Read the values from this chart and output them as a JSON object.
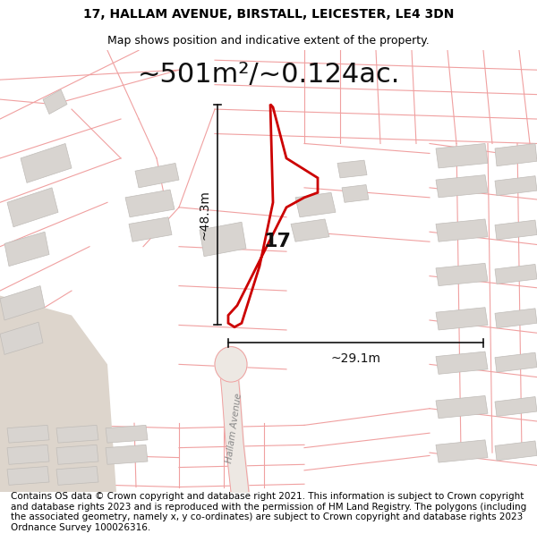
{
  "title": "17, HALLAM AVENUE, BIRSTALL, LEICESTER, LE4 3DN",
  "subtitle": "Map shows position and indicative extent of the property.",
  "area_text": "~501m²/~0.124ac.",
  "label_17": "17",
  "dim_height": "~48.3m",
  "dim_width": "~29.1m",
  "road_label": "Hallam Avenue",
  "footer": "Contains OS data © Crown copyright and database right 2021. This information is subject to Crown copyright and database rights 2023 and is reproduced with the permission of HM Land Registry. The polygons (including the associated geometry, namely x, y co-ordinates) are subject to Crown copyright and database rights 2023 Ordnance Survey 100026316.",
  "bg_color": "#ffffff",
  "map_bg": "#ffffff",
  "cadastral_color": "#f0a0a0",
  "building_color": "#d8d4d0",
  "building_edge_color": "#c0bcb8",
  "road_fill": "#e8ddd8",
  "dim_line_color": "#111111",
  "plot_color": "#cc0000",
  "title_fontsize": 10,
  "subtitle_fontsize": 9,
  "area_fontsize": 22,
  "label_fontsize": 16,
  "dim_fontsize": 10,
  "road_fontsize": 7.5,
  "footer_fontsize": 7.5
}
